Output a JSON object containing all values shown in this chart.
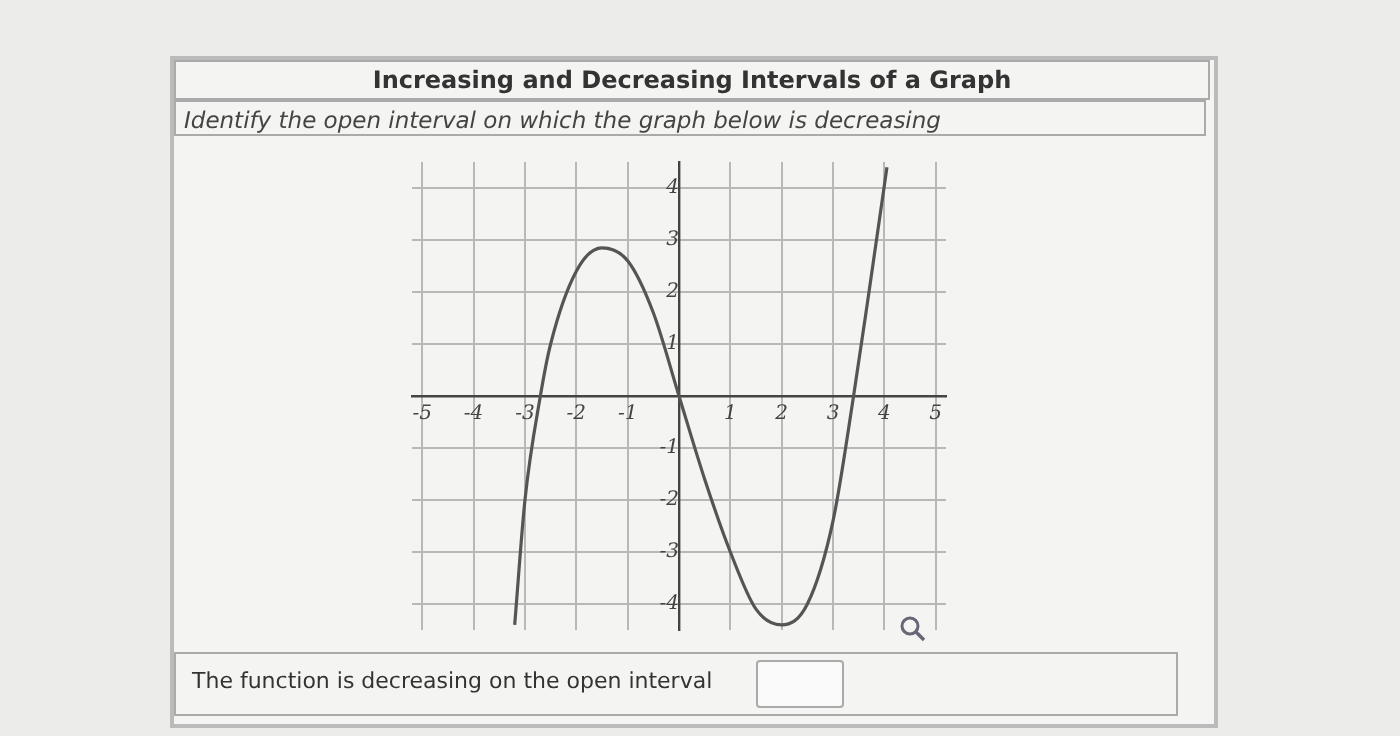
{
  "chart_data": {
    "type": "line",
    "title": "Increasing and Decreasing Intervals of a Graph",
    "subtitle": "Identify the open interval on which the graph below is decreasing",
    "annotations": [
      "The function is decreasing on the open interval"
    ],
    "x": [
      -3.2,
      -3,
      -2.7,
      -2.5,
      -2,
      -1.5,
      -1,
      -0.5,
      0,
      0.5,
      1,
      1.5,
      2,
      2.5,
      3,
      3.4,
      3.7,
      4.05
    ],
    "series": [
      {
        "color": "#555555",
        "values": [
          -4.4,
          -2,
          0,
          1,
          2.4,
          2.85,
          2.6,
          1.6,
          0,
          -1.6,
          -3,
          -4.1,
          -4.4,
          -4,
          -2.4,
          0,
          2,
          4.4
        ]
      }
    ],
    "xlim": [
      -5.2,
      5.2
    ],
    "ylim": [
      -4.5,
      4.5
    ],
    "xticks": [
      -5,
      -4,
      -3,
      -2,
      -1,
      1,
      2,
      3,
      4,
      5
    ],
    "yticks": [
      -4,
      -3,
      -2,
      -1,
      1,
      2,
      3,
      4
    ],
    "grid": true,
    "legend": false,
    "marker": "none",
    "line_style": "solid"
  }
}
